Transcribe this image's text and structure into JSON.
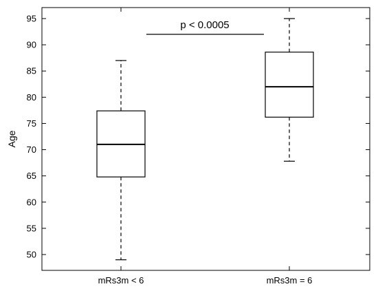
{
  "chart_data": {
    "type": "box",
    "ylabel": "Age",
    "xlabel": "",
    "ylim": [
      47,
      97
    ],
    "yticks": [
      50,
      55,
      60,
      65,
      70,
      75,
      80,
      85,
      90,
      95
    ],
    "grid": false,
    "categories": [
      "mRs3m < 6",
      "mRs3m = 6"
    ],
    "boxes": [
      {
        "category": "mRs3m < 6",
        "whisker_low": 49,
        "q1": 64.8,
        "median": 71,
        "q3": 77.4,
        "whisker_high": 87
      },
      {
        "category": "mRs3m = 6",
        "whisker_low": 67.8,
        "q1": 76.2,
        "median": 82,
        "q3": 88.6,
        "whisker_high": 95
      }
    ],
    "annotation": {
      "text": "p < 0.0005",
      "y": 92
    }
  }
}
